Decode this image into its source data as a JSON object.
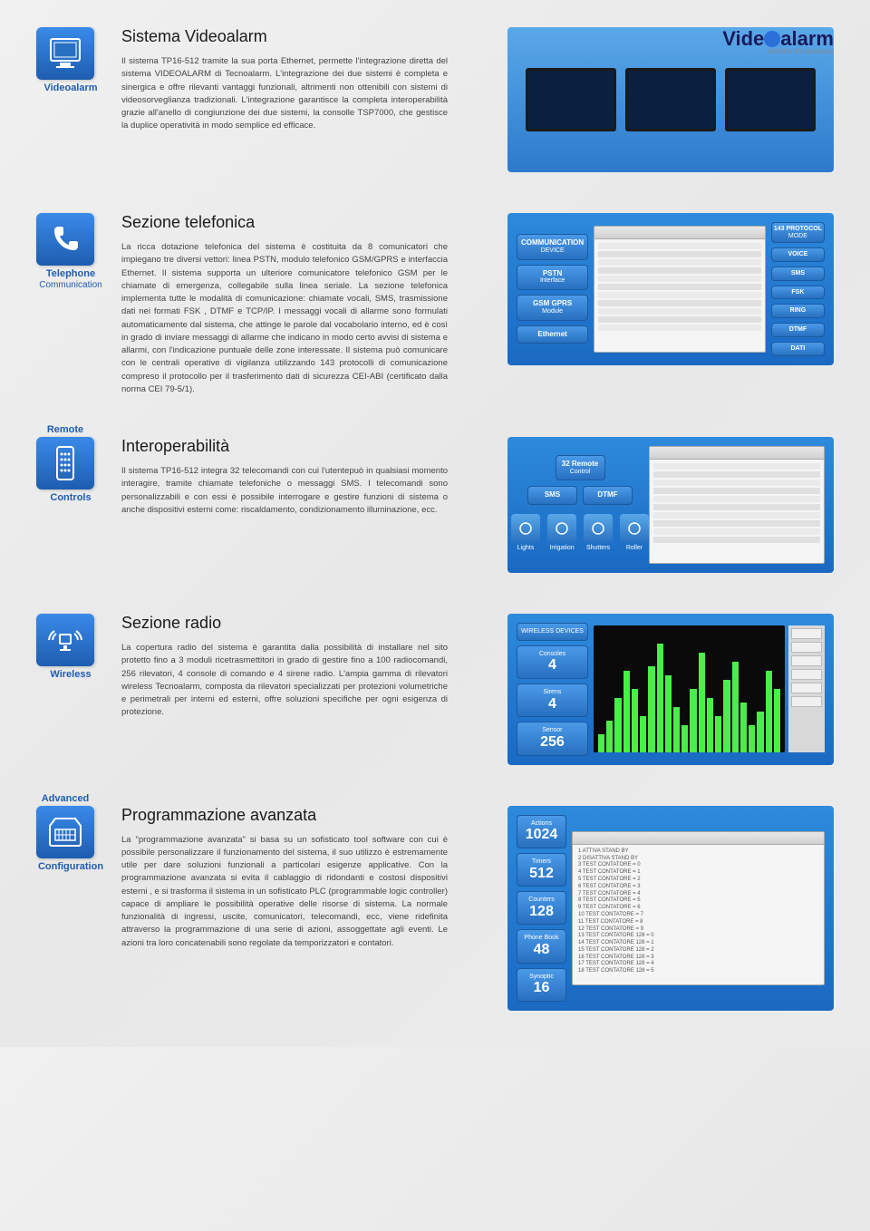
{
  "logo": {
    "pre": "Vide",
    "post": "alarm",
    "sub": "DESIGN BY pininfarina"
  },
  "colors": {
    "accent": "#1e5db0",
    "pill_bg": "#3a8ae8",
    "green": "#4aee4a"
  },
  "sections": {
    "videoalarm": {
      "icon_label": "Videoalarm",
      "title": "Sistema Videoalarm",
      "body": "Il sistema TP16-512 tramite la sua porta Ethernet, permette l'integrazione diretta del sistema VIDEOALARM di Tecnoalarm. L'integrazione dei due sistemi è completa e sinergica e offre rilevanti vantaggi funzionali, altrimenti non ottenibili con sistemi di videosorveglianza tradizionali. L'integrazione garantisce la completa interoperabilità grazie all'anello di congiunzione dei due sistemi, la consolle TSP7000, che gestisce la duplice operatività in modo semplice ed efficace."
    },
    "telephone": {
      "icon_label": "Telephone",
      "icon_sub": "Communication",
      "title": "Sezione telefonica",
      "body": "La ricca dotazione telefonica del sistema è costituita da 8 comunicatori che impiegano tre diversi vettori: linea PSTN, modulo telefonico GSM/GPRS e interfaccia Ethernet. Il sistema supporta un ulteriore comunicatore telefonico GSM per le chiamate di emergenza, collegabile sulla linea seriale. La sezione telefonica implementa tutte le modalità di comunicazione: chiamate vocali, SMS, trasmissione dati nei formati FSK , DTMF e TCP/IP. I messaggi vocali di allarme sono formulati automaticamente dal sistema, che attinge le parole dal vocabolario interno, ed è così in grado di inviare messaggi di allarme che indicano in modo certo avvisi di sistema e allarmi, con l'indicazione puntuale delle zone interessate. Il sistema può comunicare con le centrali operative di vigilanza utilizzando 143 protocolli di comunicazione compreso il protocollo per il trasferimento dati di sicurezza CEI-ABI (certificato dalla norma CEI 79-5/1).",
      "left_pills": [
        {
          "l1": "COMMUNICATION",
          "l2": "DEVICE"
        },
        {
          "l1": "PSTN",
          "l2": "Interface"
        },
        {
          "l1": "GSM GPRS",
          "l2": "Module"
        },
        {
          "l1": "Ethernet",
          "l2": ""
        }
      ],
      "right_pills": [
        {
          "l1": "143 PROTOCOL",
          "l2": "MODE"
        },
        {
          "l1": "VOICE",
          "l2": ""
        },
        {
          "l1": "SMS",
          "l2": ""
        },
        {
          "l1": "FSK",
          "l2": ""
        },
        {
          "l1": "RING",
          "l2": ""
        },
        {
          "l1": "DTMF",
          "l2": ""
        },
        {
          "l1": "DATI",
          "l2": ""
        }
      ]
    },
    "remote": {
      "icon_label": "Remote",
      "icon_sub": "Controls",
      "title": "Interoperabilità",
      "body": "Il sistema TP16-512 integra 32 telecomandi con cui  l'utentepuò in qualsiasi momento interagire, tramite chiamate telefoniche o messaggi SMS. I telecomandi sono personalizzabili e con essi è possibile interrogare e gestire funzioni di sistema o anche dispositivi esterni come: riscaldamento, condizionamento illuminazione, ecc.",
      "top_pill": {
        "l1": "32 Remote",
        "l2": "Control"
      },
      "mid_pills": [
        "SMS",
        "DTMF"
      ],
      "icons": [
        "Lights",
        "Irrigation",
        "Shutters",
        "Roller"
      ]
    },
    "wireless": {
      "icon_label": "Wireless",
      "title": "Sezione radio",
      "body": "La copertura radio del sistema è garantita dalla possibilità di installare nel sito protetto fino a 3 moduli ricetrasmettitori in grado di gestire fino a 100 radiocomandi, 256 rilevatori, 4 console di comando e 4 sirene radio. L'ampia gamma di rilevatori wireless Tecnoalarm, composta da rilevatori specializzati per protezioni volumetriche e perimetrali per interni ed esterni, offre soluzioni specifiche per ogni esigenza di protezione.",
      "pills": [
        {
          "l1": "WIRELESS",
          "l2": "DEVICES",
          "big": ""
        },
        {
          "l1": "Consoles",
          "big": "4"
        },
        {
          "l1": "Sirens",
          "big": "4"
        },
        {
          "l1": "Sensor",
          "big": "256"
        }
      ],
      "spectrum_heights": [
        20,
        35,
        60,
        90,
        70,
        40,
        95,
        120,
        85,
        50,
        30,
        70,
        110,
        60,
        40,
        80,
        100,
        55,
        30,
        45,
        90,
        70
      ]
    },
    "advanced": {
      "icon_label": "Advanced",
      "icon_sub": "Configuration",
      "title": "Programmazione avanzata",
      "body": "La \"programmazione avanzata\" si basa su un sofisticato tool software con cui è possibile personalizzare il funzionamento del sistema, il suo utilizzo è estremamente utile per dare soluzioni funzionali a particolari esigenze applicative. Con la programmazione avanzata si evita il cablaggio di ridondanti e costosi dispositivi esterni , e si trasforma il sistema in un sofisticato PLC (programmable logic controller) capace di ampliare le possibilità operative delle risorse di sistema. La normale funzionalità di ingressi, uscite, comunicatori, telecomandi, ecc, viene ridefinita attraverso la programmazione di una serie di azioni, assoggettate agli eventi. Le azioni tra loro concatenabili sono regolate da temporizzatori e contatori.",
      "pills": [
        {
          "l1": "Actions",
          "big": "1024"
        },
        {
          "l1": "Timers",
          "big": "512"
        },
        {
          "l1": "Counters",
          "big": "128"
        },
        {
          "l1": "Phone Book",
          "big": "48"
        },
        {
          "l1": "Synoptic",
          "big": "16"
        }
      ],
      "list_items": [
        "ATTIVA STAND BY",
        "DISATTIVA STAND BY",
        "TEST CONTATORE = 0",
        "TEST CONTATORE = 1",
        "TEST CONTATORE = 2",
        "TEST CONTATORE = 3",
        "TEST CONTATORE = 4",
        "TEST CONTATORE = 5",
        "TEST CONTATORE = 6",
        "TEST CONTATORE = 7",
        "TEST CONTATORE = 8",
        "TEST CONTATORE = 9",
        "TEST CONTATORE 128 = 0",
        "TEST CONTATORE 128 = 1",
        "TEST CONTATORE 128 = 2",
        "TEST CONTATORE 128 = 3",
        "TEST CONTATORE 128 = 4",
        "TEST CONTATORE 128 = 5"
      ]
    }
  }
}
